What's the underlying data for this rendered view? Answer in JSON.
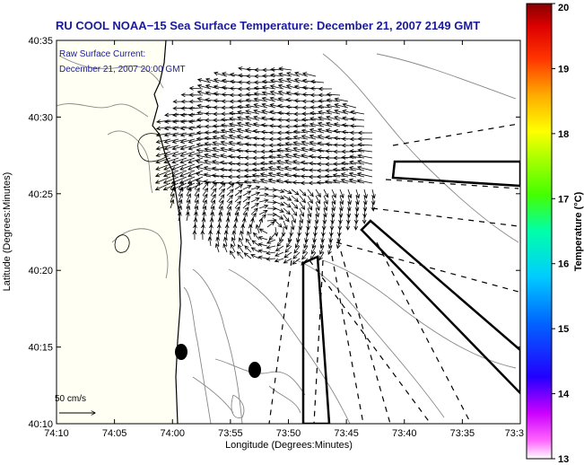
{
  "title": "RU COOL  NOAA−15  Sea Surface Temperature:  December 21, 2007 2149 GMT",
  "annotation_line1": "Raw Surface Current:",
  "annotation_line2": "December 21, 2007 20:00 GMT",
  "scale_label": "50 cm/s",
  "x_axis_label": "Longitude (Degrees:Minutes)",
  "y_axis_label": "Latitude (Degrees:Minutes)",
  "x_ticks": [
    "74:10",
    "74:05",
    "74:00",
    "73:55",
    "73:50",
    "73:45",
    "73:40",
    "73:35",
    "73:3"
  ],
  "y_ticks": [
    "40:35",
    "40:30",
    "40:25",
    "40:20",
    "40:15",
    "40:10"
  ],
  "colorbar": {
    "label": "Temperature (°C)",
    "ticks": [
      "20",
      "19",
      "18",
      "17",
      "16",
      "15",
      "14",
      "13"
    ],
    "range": [
      13,
      20
    ],
    "colors": [
      "#ff00ff",
      "#0000ff",
      "#00ccff",
      "#00ff99",
      "#66ff00",
      "#ffff00",
      "#ff9900",
      "#ff0000",
      "#880000"
    ]
  },
  "colors": {
    "title": "#1a1a9a",
    "land": "#fffff2",
    "coastline": "#000000",
    "bathymetry": "#888888"
  }
}
